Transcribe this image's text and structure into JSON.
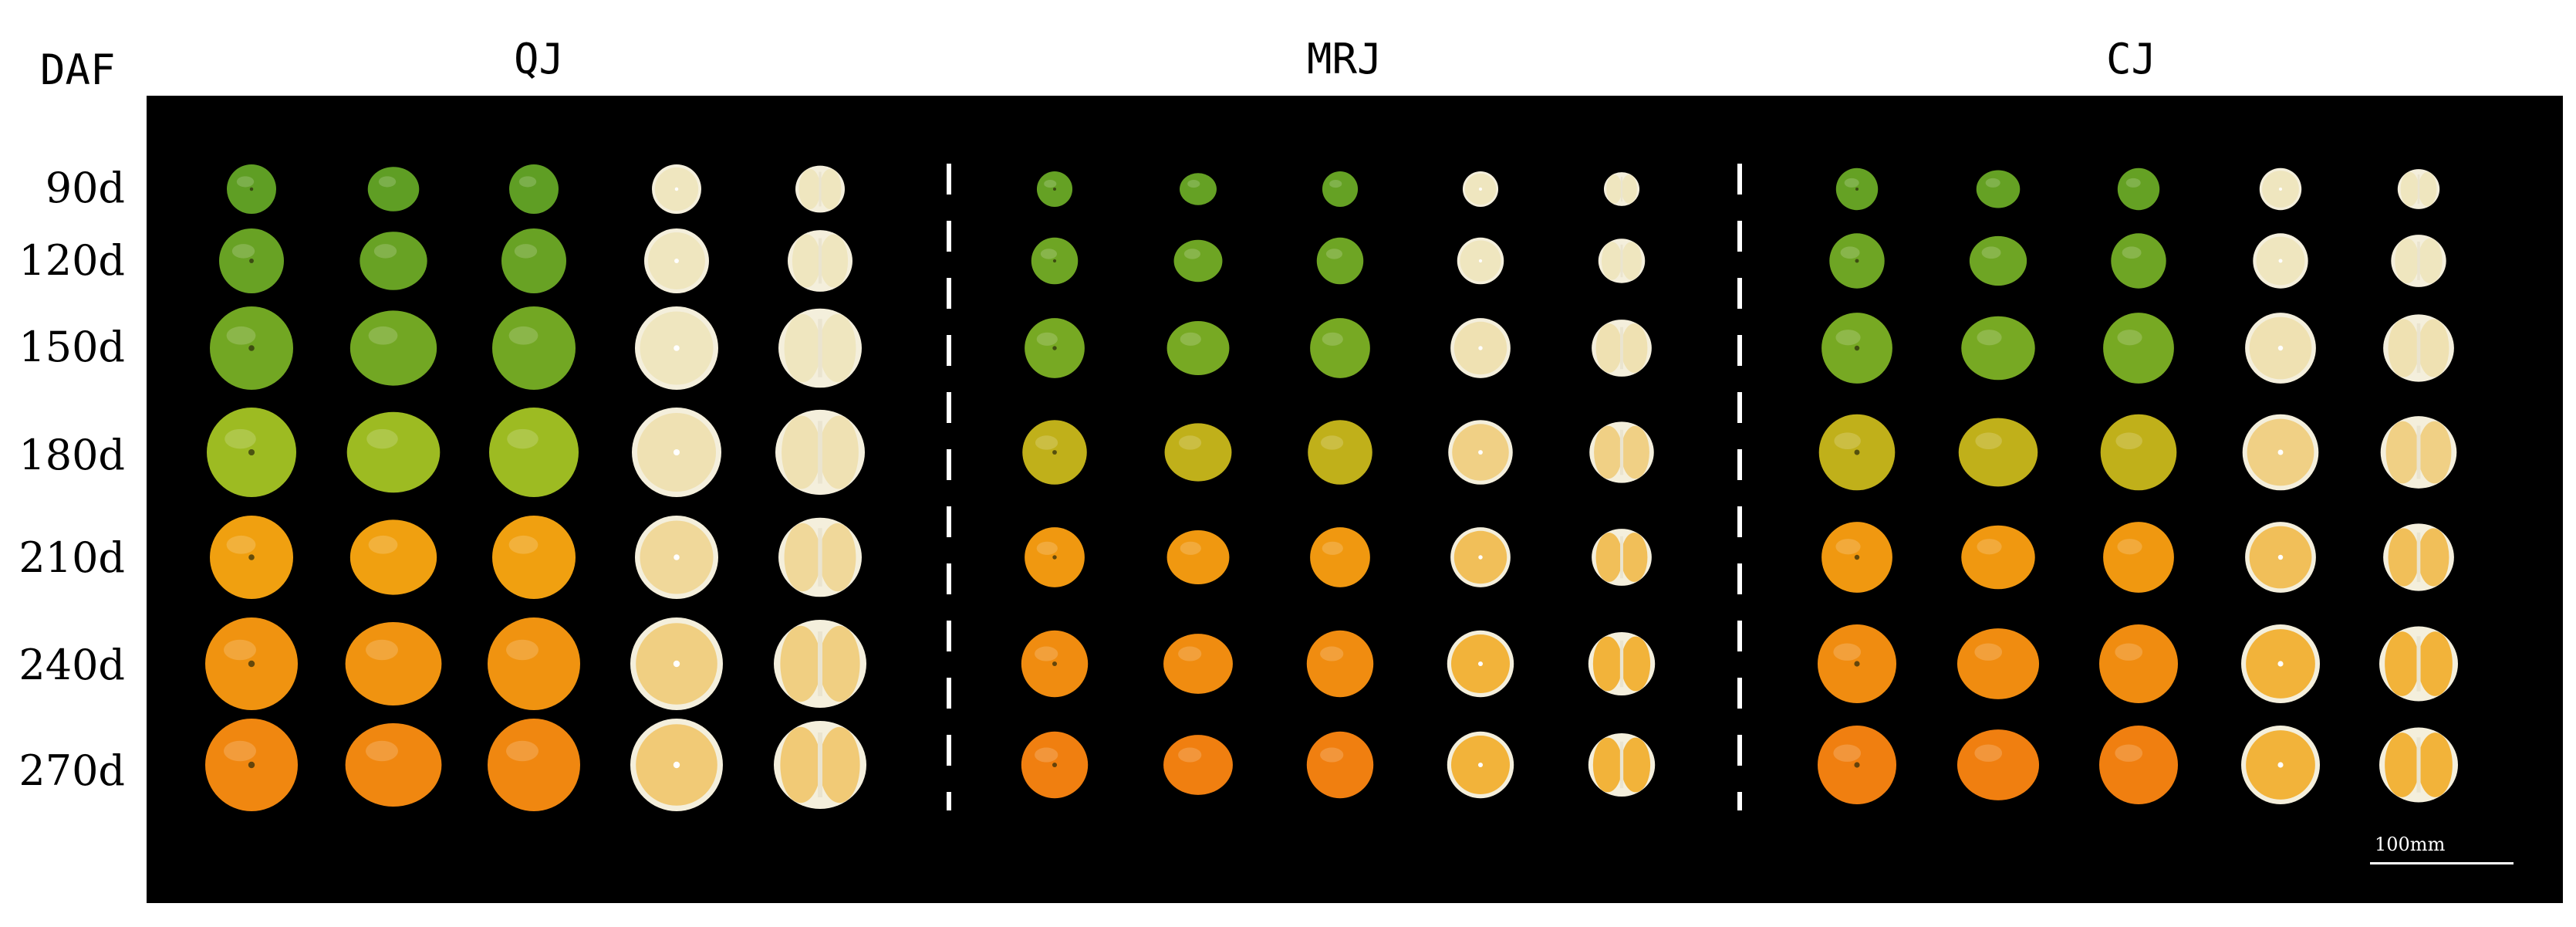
{
  "header": {
    "daf_label": "DAF"
  },
  "groups": [
    {
      "label": "QJ",
      "size": 1.0
    },
    {
      "label": "MRJ",
      "size": 0.72
    },
    {
      "label": "CJ",
      "size": 0.85
    }
  ],
  "timepoints": [
    {
      "label": "90d",
      "stage": 0
    },
    {
      "label": "120d",
      "stage": 1
    },
    {
      "label": "150d",
      "stage": 2
    },
    {
      "label": "180d",
      "stage": 3
    },
    {
      "label": "210d",
      "stage": 4
    },
    {
      "label": "240d",
      "stage": 5
    },
    {
      "label": "270d",
      "stage": 6
    }
  ],
  "scale_bar": {
    "label": "100mm"
  },
  "colors": {
    "background": "#000000",
    "divider": "#ffffff",
    "peel_green": "#5f9e24",
    "peel_yellow_green": "#9dbb22",
    "peel_orange": "#f0a010",
    "flesh_pale": "#efe6bf",
    "flesh_orange": "#f2b33a"
  }
}
